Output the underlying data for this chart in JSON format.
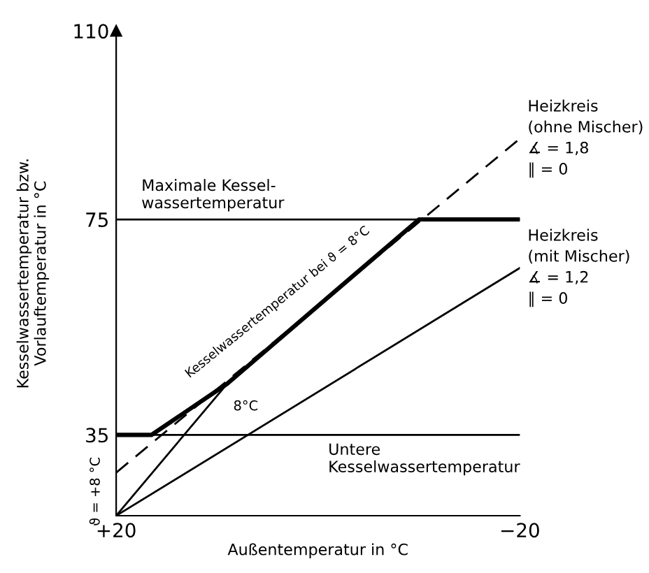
{
  "chart_data": {
    "type": "line",
    "xlabel": "Außentemperatur in °C",
    "ylabel": "Kesselwassertemperatur bzw.\nVorlauftemperatur in °C",
    "xlim": [
      20,
      -20
    ],
    "ylim": [
      20,
      110
    ],
    "xticks": [
      {
        "value": 20,
        "label": "+20"
      },
      {
        "value": -20,
        "label": "−20"
      }
    ],
    "yticks": [
      35,
      75,
      110
    ],
    "grid": false,
    "series": [
      {
        "color": "#000000",
        "x": [
          20,
          9
        ],
        "values": [
          20,
          44.5
        ]
      },
      {
        "color": "#000000",
        "x": [
          20,
          -20
        ],
        "values": [
          28,
          90
        ],
        "line_style": "dashed"
      },
      {
        "color": "#000000",
        "x": [
          20,
          16.5,
          9,
          -10,
          -20
        ],
        "values": [
          35,
          35,
          44.5,
          75,
          75
        ]
      },
      {
        "color": "#000000",
        "x": [
          20,
          -20
        ],
        "values": [
          20,
          66
        ]
      }
    ],
    "ref_lines": [
      {
        "axis": "y",
        "value": 75,
        "label": "Maximale Kessel-\nwassertemperatur",
        "color": "#000000"
      },
      {
        "axis": "y",
        "value": 35,
        "label": "Untere\nKesselwassertemperatur",
        "color": "#000000"
      }
    ],
    "annotations": [
      "Kesselwassertemperatur bei ϑ = 8°C",
      "8°C",
      "ϑ = +8 °C",
      {
        "text": "Heizkreis\n(ohne Mischer)\n∡ = 1,8\n∥ = 0",
        "x": -20,
        "y": 90
      },
      {
        "text": "Heizkreis\n(mit Mischer)\n∡ = 1,2\n∥ = 0",
        "x": -20,
        "y": 66
      }
    ]
  }
}
